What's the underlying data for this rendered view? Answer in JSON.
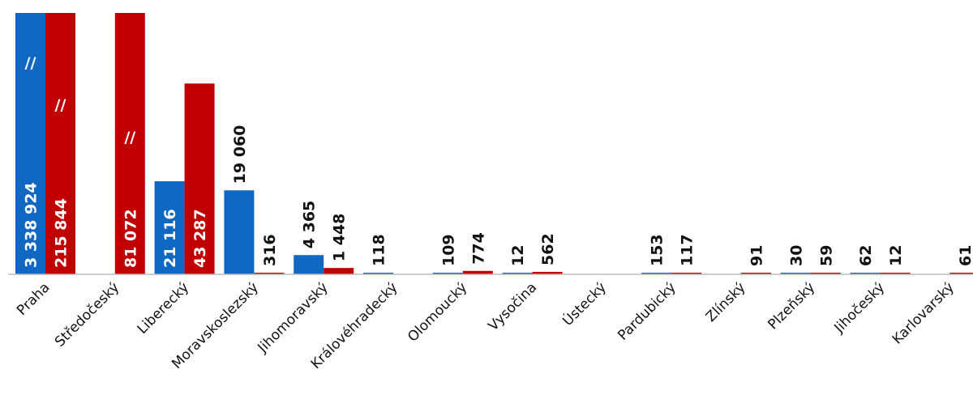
{
  "chart_data": {
    "type": "bar",
    "categories": [
      "Praha",
      "Středočeský",
      "Liberecký",
      "Moravskoslezský",
      "Jihomoravský",
      "Královéhradecký",
      "Olomoucký",
      "Vysočina",
      "Ústecký",
      "Pardubický",
      "Zlínský",
      "Plzeňský",
      "Jihočeský",
      "Karlovarský"
    ],
    "series": [
      {
        "color": "#1068c2",
        "values": [
          3338924,
          0,
          21116,
          19060,
          4365,
          118,
          109,
          12,
          0,
          153,
          0,
          30,
          62,
          0
        ],
        "labels": [
          "3 338 924",
          "",
          "21 116",
          "19 060",
          "4 365",
          "118",
          "109",
          "12",
          "",
          "153",
          "",
          "30",
          "62",
          ""
        ]
      },
      {
        "color": "#c00000",
        "values": [
          215844,
          81072,
          43287,
          316,
          1448,
          0,
          774,
          562,
          0,
          117,
          91,
          59,
          12,
          61
        ],
        "labels": [
          "215 844",
          "81 072",
          "43 287",
          "316",
          "1 448",
          "",
          "774",
          "562",
          "",
          "117",
          "91",
          "59",
          "12",
          "61"
        ]
      }
    ],
    "axis_break_marker": "//",
    "grid": false,
    "legend": "none"
  }
}
